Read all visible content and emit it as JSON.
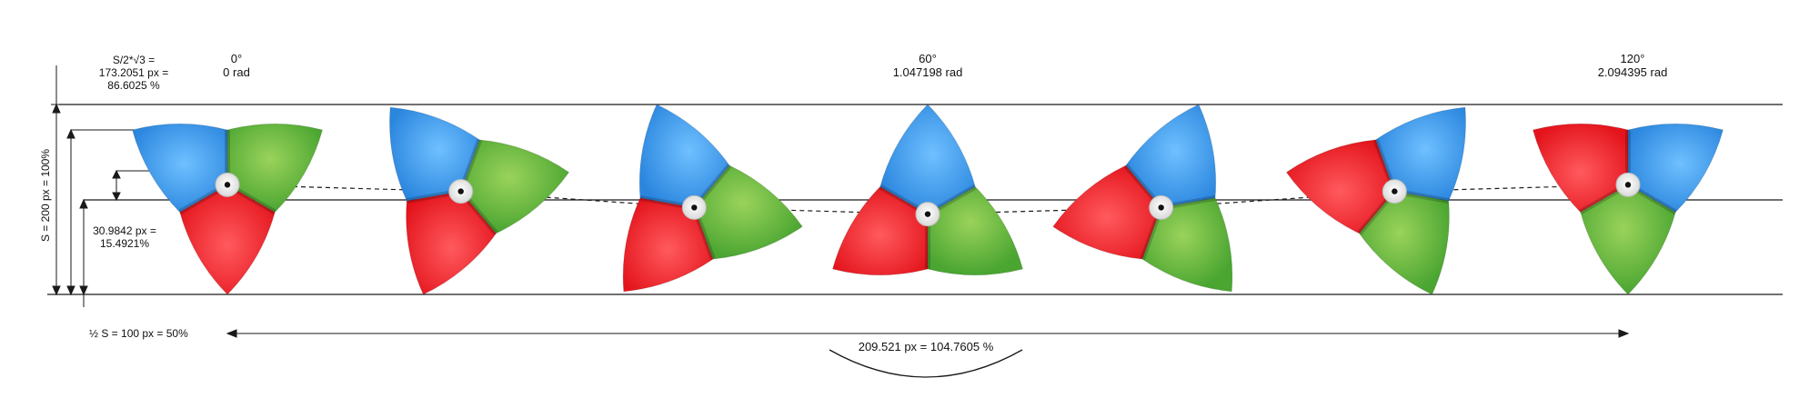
{
  "angle_labels": [
    {
      "degrees": "0°",
      "radians": "0 rad"
    },
    {
      "degrees": "60°",
      "radians": "1.047198 rad"
    },
    {
      "degrees": "120°",
      "radians": "2.094395 rad"
    }
  ],
  "dimensions": {
    "circumradius": {
      "formula": "S/2*√3 =",
      "pixels": "173.2051 px =",
      "percent": "86.6025 %"
    },
    "offset": {
      "pixels": "30.9842 px =",
      "percent": "15.4921%"
    },
    "side": "S = 200 px = 100%",
    "half_side": "½ S = 100 px = 50%",
    "travel": "209.521 px = 104.7605 %"
  },
  "colors": {
    "red": "#ec1c24",
    "green": "#5fb13a",
    "blue": "#3d97e8",
    "line": "#1a1a1a"
  },
  "frames": [
    {
      "rotation_deg": 0
    },
    {
      "rotation_deg": 20
    },
    {
      "rotation_deg": 40
    },
    {
      "rotation_deg": 60
    },
    {
      "rotation_deg": 80
    },
    {
      "rotation_deg": 100
    },
    {
      "rotation_deg": 120
    }
  ]
}
